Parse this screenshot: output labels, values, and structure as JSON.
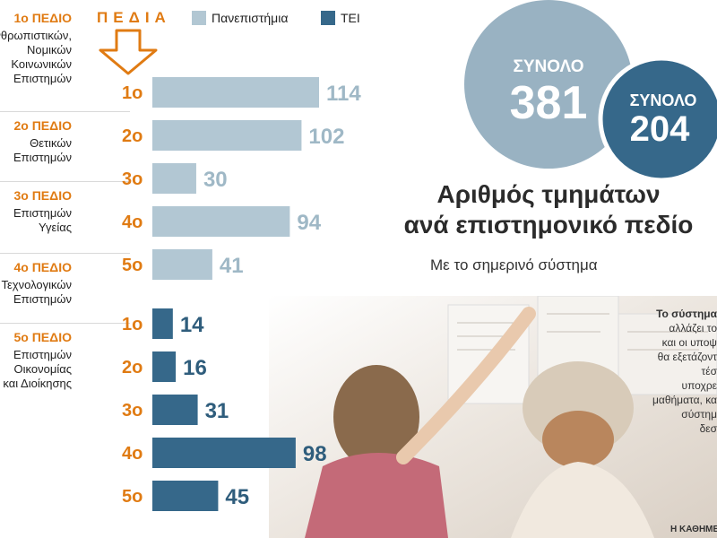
{
  "legend": {
    "header": "ΠΕΔΙΑ",
    "universities": "Πανεπιστήμια",
    "tei": "ΤΕΙ"
  },
  "colors": {
    "university_bar": "#b2c7d3",
    "university_label": "#9fb8c6",
    "tei_bar": "#36688a",
    "tei_label": "#2f5d7c",
    "accent": "#e07b13"
  },
  "fields": [
    {
      "title": "1ο ΠΕΔΙΟ",
      "lines": [
        "Ανθρωπιστικών,",
        "Νομικών",
        "Κοινωνικών",
        "Επιστημών"
      ]
    },
    {
      "title": "2ο ΠΕΔΙΟ",
      "lines": [
        "Θετικών",
        "Επιστημών"
      ]
    },
    {
      "title": "3ο ΠΕΔΙΟ",
      "lines": [
        "Επιστημών",
        "Υγείας"
      ]
    },
    {
      "title": "4ο ΠΕΔΙΟ",
      "lines": [
        "Τεχνολογικών",
        "Επιστημών"
      ]
    },
    {
      "title": "5ο ΠΕΔΙΟ",
      "lines": [
        "Επιστημών",
        "Οικονομίας",
        "και Διοίκησης"
      ]
    }
  ],
  "totals": {
    "universities": {
      "label": "ΣΥΝΟΛΟ",
      "value": "381"
    },
    "tei": {
      "label": "ΣΥΝΟΛΟ",
      "value": "204"
    }
  },
  "title_line1": "Αριθμός τμημάτων",
  "title_line2": "ανά επιστημονικό πεδίο",
  "subtitle": "Με το σημερινό σύστημα",
  "side_note": [
    "Το σύστημα",
    "αλλάζει το",
    "και οι υποψ",
    "θα εξετάζοντ",
    "τέσ",
    "υποχρε",
    "μαθήματα, κα",
    "σύστημ",
    "δεσ"
  ],
  "credit": "Η ΚΑΘΗΜΕΡΙΝΗ",
  "chart_data": {
    "type": "bar",
    "orientation": "horizontal",
    "title": "Αριθμός τμημάτων ανά επιστημονικό πεδίο",
    "categories": [
      "1ο",
      "2ο",
      "3ο",
      "4ο",
      "5ο"
    ],
    "series": [
      {
        "name": "Πανεπιστήμια",
        "values": [
          114,
          102,
          30,
          94,
          41
        ]
      },
      {
        "name": "ΤΕΙ",
        "values": [
          14,
          16,
          31,
          98,
          45
        ]
      }
    ],
    "xlim": [
      0,
      120
    ]
  }
}
